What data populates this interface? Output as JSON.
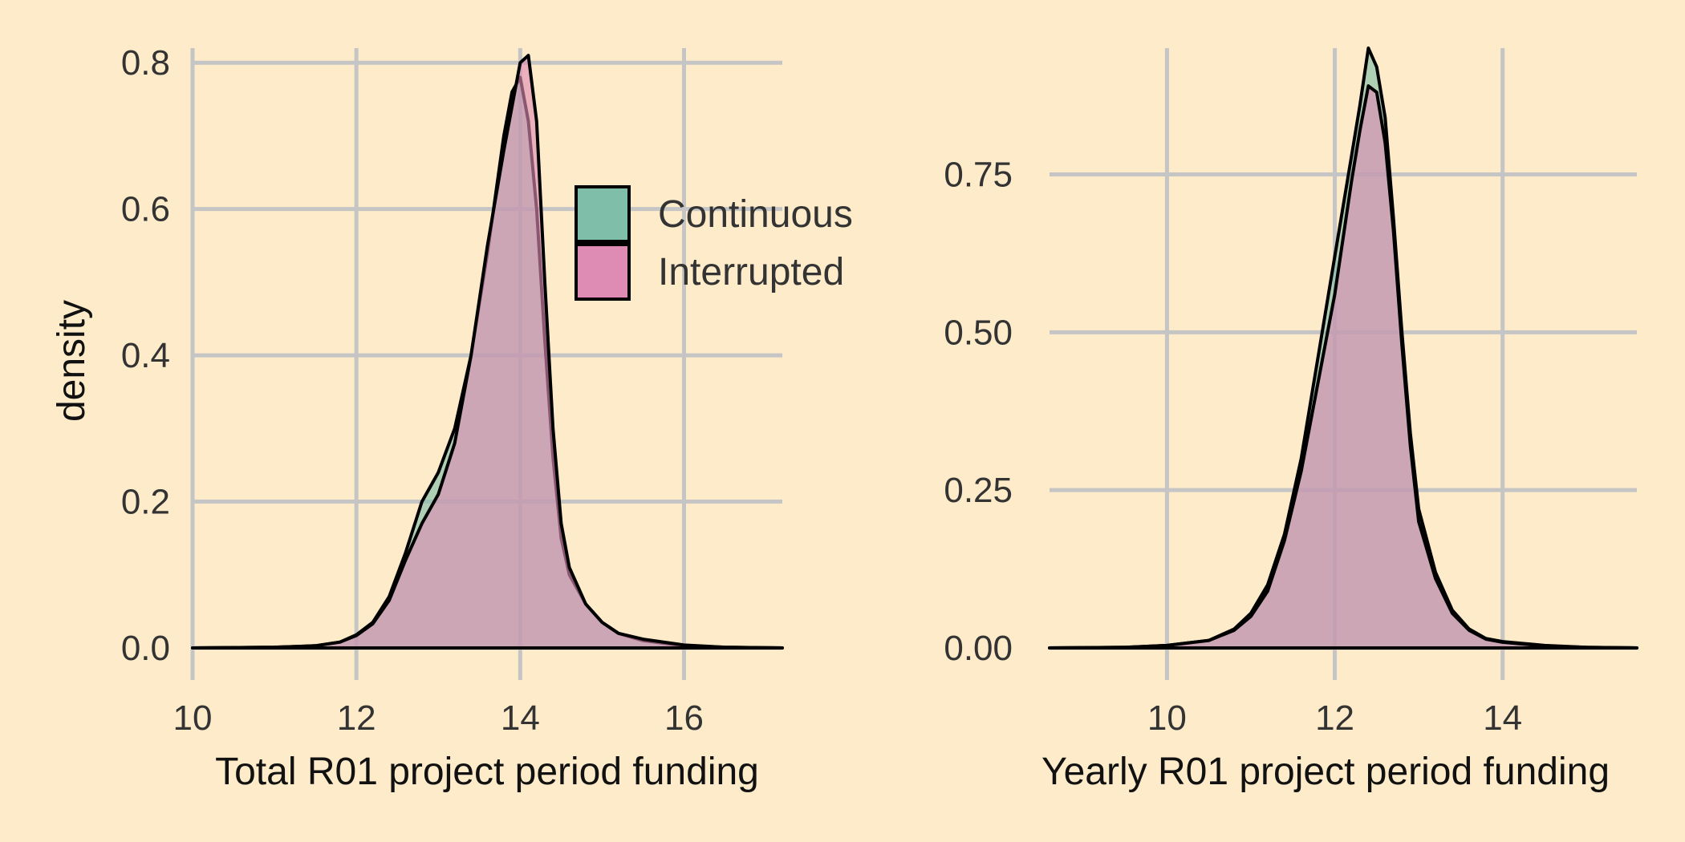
{
  "colors": {
    "background": "#fdebc9",
    "continuous": "#7fbfa9",
    "interrupted": "#de8cb4",
    "grid": "#c5c5c5",
    "outline": "#000000"
  },
  "legend": {
    "position": "top-right of left panel",
    "items": [
      {
        "label": "Continuous",
        "color": "#7fbfa9"
      },
      {
        "label": "Interrupted",
        "color": "#de8cb4"
      }
    ]
  },
  "chart_data": [
    {
      "type": "area",
      "xlabel": "Total R01 project period funding",
      "ylabel": "density",
      "xlim": [
        10,
        17.2
      ],
      "ylim": [
        0,
        0.82
      ],
      "x_ticks": [
        "10",
        "12",
        "14",
        "16"
      ],
      "y_ticks": [
        "0.0",
        "0.2",
        "0.4",
        "0.6",
        "0.8"
      ],
      "grid": true,
      "series": [
        {
          "name": "Continuous",
          "x": [
            10.0,
            11.0,
            11.5,
            11.8,
            12.0,
            12.2,
            12.4,
            12.6,
            12.8,
            13.0,
            13.2,
            13.4,
            13.6,
            13.8,
            13.9,
            14.0,
            14.1,
            14.2,
            14.3,
            14.4,
            14.5,
            14.6,
            14.8,
            15.0,
            15.2,
            15.5,
            16.0,
            16.5,
            17.2
          ],
          "y": [
            0.0,
            0.001,
            0.003,
            0.008,
            0.018,
            0.035,
            0.07,
            0.13,
            0.2,
            0.24,
            0.3,
            0.4,
            0.54,
            0.7,
            0.76,
            0.78,
            0.72,
            0.6,
            0.42,
            0.26,
            0.15,
            0.1,
            0.06,
            0.035,
            0.02,
            0.01,
            0.003,
            0.001,
            0.0
          ]
        },
        {
          "name": "Interrupted",
          "x": [
            10.0,
            11.0,
            11.5,
            11.8,
            12.0,
            12.2,
            12.4,
            12.6,
            12.8,
            13.0,
            13.2,
            13.4,
            13.6,
            13.8,
            13.9,
            14.0,
            14.1,
            14.2,
            14.3,
            14.4,
            14.5,
            14.6,
            14.8,
            15.0,
            15.2,
            15.5,
            16.0,
            16.5,
            17.2
          ],
          "y": [
            0.0,
            0.001,
            0.003,
            0.008,
            0.017,
            0.033,
            0.065,
            0.12,
            0.17,
            0.21,
            0.28,
            0.4,
            0.55,
            0.68,
            0.74,
            0.8,
            0.81,
            0.72,
            0.5,
            0.3,
            0.17,
            0.11,
            0.06,
            0.035,
            0.02,
            0.012,
            0.004,
            0.001,
            0.0
          ]
        }
      ]
    },
    {
      "type": "area",
      "xlabel": "Yearly R01 project period funding",
      "ylabel": "",
      "xlim": [
        8.6,
        15.6
      ],
      "ylim": [
        0,
        0.95
      ],
      "x_ticks": [
        "10",
        "12",
        "14"
      ],
      "y_ticks": [
        "0.00",
        "0.25",
        "0.50",
        "0.75"
      ],
      "grid": true,
      "series": [
        {
          "name": "Continuous",
          "x": [
            8.6,
            9.5,
            10.0,
            10.5,
            10.8,
            11.0,
            11.2,
            11.4,
            11.6,
            11.8,
            12.0,
            12.1,
            12.2,
            12.3,
            12.4,
            12.5,
            12.6,
            12.7,
            12.8,
            12.9,
            13.0,
            13.2,
            13.4,
            13.6,
            13.8,
            14.0,
            14.5,
            15.0,
            15.6
          ],
          "y": [
            0.0,
            0.001,
            0.004,
            0.012,
            0.03,
            0.055,
            0.1,
            0.18,
            0.3,
            0.46,
            0.62,
            0.7,
            0.78,
            0.86,
            0.95,
            0.92,
            0.84,
            0.68,
            0.5,
            0.34,
            0.22,
            0.12,
            0.06,
            0.03,
            0.015,
            0.01,
            0.004,
            0.001,
            0.0
          ]
        },
        {
          "name": "Interrupted",
          "x": [
            8.6,
            9.5,
            10.0,
            10.5,
            10.8,
            11.0,
            11.2,
            11.4,
            11.6,
            11.8,
            12.0,
            12.1,
            12.2,
            12.3,
            12.4,
            12.5,
            12.6,
            12.7,
            12.8,
            12.9,
            13.0,
            13.2,
            13.4,
            13.6,
            13.8,
            14.0,
            14.5,
            15.0,
            15.6
          ],
          "y": [
            0.0,
            0.001,
            0.004,
            0.012,
            0.028,
            0.05,
            0.09,
            0.17,
            0.28,
            0.42,
            0.56,
            0.65,
            0.74,
            0.82,
            0.89,
            0.88,
            0.8,
            0.66,
            0.48,
            0.32,
            0.2,
            0.11,
            0.055,
            0.028,
            0.014,
            0.009,
            0.003,
            0.001,
            0.0
          ]
        }
      ]
    }
  ]
}
